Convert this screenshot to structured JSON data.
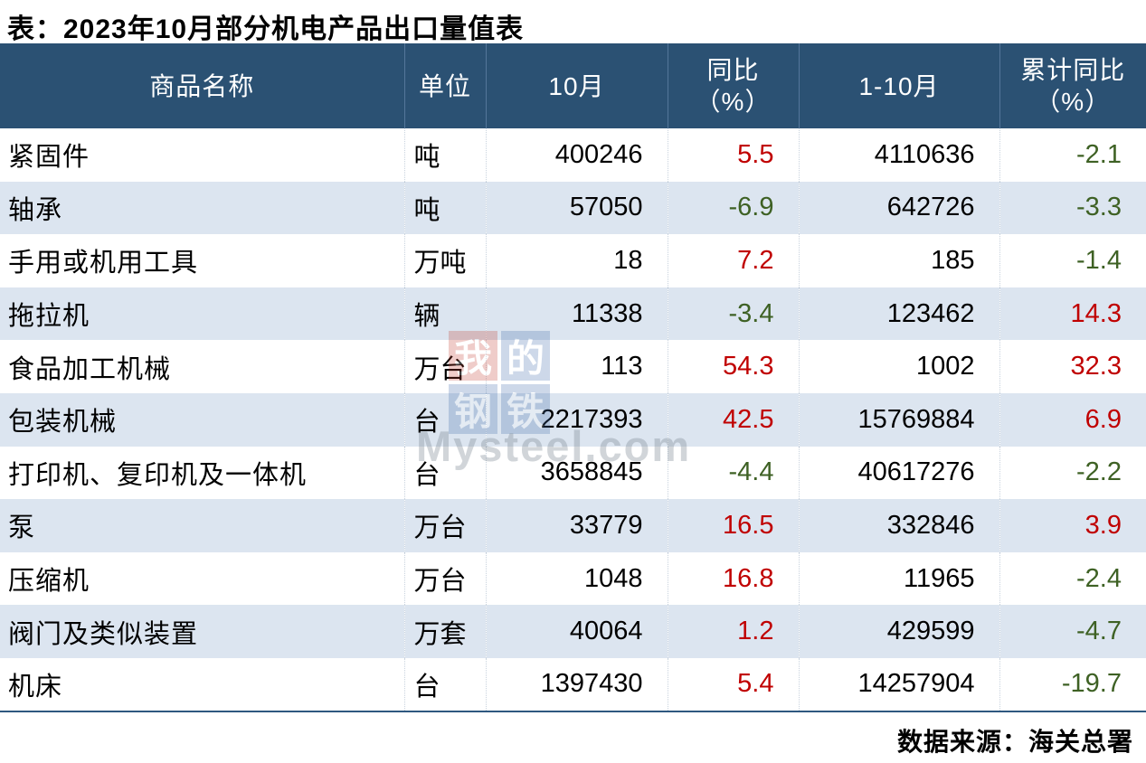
{
  "title": "表：2023年10月部分机电产品出口量值表",
  "colors": {
    "header_bg": "#2B5173",
    "alt_row_bg": "#DCE5F0",
    "positive": "#C00000",
    "negative": "#3E6124"
  },
  "watermark": {
    "squares": [
      "我",
      "的",
      "钢",
      "铁"
    ],
    "text": "Mysteel.com"
  },
  "table": {
    "headers": [
      {
        "label": "商品名称",
        "sub": ""
      },
      {
        "label": "单位",
        "sub": ""
      },
      {
        "label": "10月",
        "sub": ""
      },
      {
        "label": "同比",
        "sub": "（%）"
      },
      {
        "label": "1-10月",
        "sub": ""
      },
      {
        "label": "累计同比",
        "sub": "（%）"
      }
    ],
    "rows": [
      {
        "name": "紧固件",
        "unit": "吨",
        "oct": "400246",
        "yoy": "5.5",
        "ytd": "4110636",
        "cum": "-2.1"
      },
      {
        "name": "轴承",
        "unit": "吨",
        "oct": "57050",
        "yoy": "-6.9",
        "ytd": "642726",
        "cum": "-3.3"
      },
      {
        "name": "手用或机用工具",
        "unit": "万吨",
        "oct": "18",
        "yoy": "7.2",
        "ytd": "185",
        "cum": "-1.4"
      },
      {
        "name": "拖拉机",
        "unit": "辆",
        "oct": "11338",
        "yoy": "-3.4",
        "ytd": "123462",
        "cum": "14.3"
      },
      {
        "name": "食品加工机械",
        "unit": "万台",
        "oct": "113",
        "yoy": "54.3",
        "ytd": "1002",
        "cum": "32.3"
      },
      {
        "name": "包装机械",
        "unit": "台",
        "oct": "2217393",
        "yoy": "42.5",
        "ytd": "15769884",
        "cum": "6.9"
      },
      {
        "name": "打印机、复印机及一体机",
        "unit": "台",
        "oct": "3658845",
        "yoy": "-4.4",
        "ytd": "40617276",
        "cum": "-2.2"
      },
      {
        "name": "泵",
        "unit": "万台",
        "oct": "33779",
        "yoy": "16.5",
        "ytd": "332846",
        "cum": "3.9"
      },
      {
        "name": "压缩机",
        "unit": "万台",
        "oct": "1048",
        "yoy": "16.8",
        "ytd": "11965",
        "cum": "-2.4"
      },
      {
        "name": "阀门及类似装置",
        "unit": "万套",
        "oct": "40064",
        "yoy": "1.2",
        "ytd": "429599",
        "cum": "-4.7"
      },
      {
        "name": "机床",
        "unit": "台",
        "oct": "1397430",
        "yoy": "5.4",
        "ytd": "14257904",
        "cum": "-19.7"
      }
    ]
  },
  "footer": {
    "source": "数据来源：海关总署"
  }
}
